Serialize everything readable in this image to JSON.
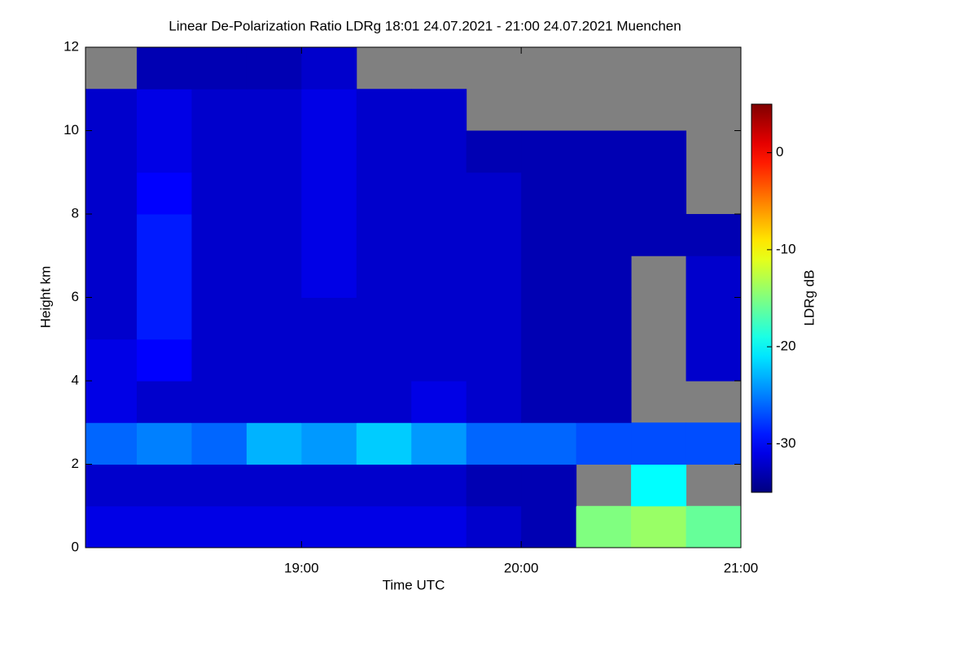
{
  "chart_data": {
    "type": "heatmap",
    "title": "Linear De-Polarization Ratio LDRg   18:01 24.07.2021 - 21:00 24.07.2021 Muenchen",
    "xlabel": "Time UTC",
    "ylabel": "Height km",
    "colorbar_label": "LDRg dB",
    "xbins": [
      18.0,
      18.25,
      18.5,
      18.75,
      19.0,
      19.25,
      19.5,
      19.75,
      20.0,
      20.25,
      20.5,
      20.75,
      21.0
    ],
    "ybins": [
      0,
      1,
      2,
      3,
      4,
      5,
      6,
      7,
      8,
      9,
      10,
      11,
      12
    ],
    "z": [
      [
        -31,
        -31,
        -31,
        -31,
        -31,
        -31,
        -31,
        -32,
        -33,
        -15,
        -14,
        -16
      ],
      [
        -32,
        -32,
        -32,
        -32,
        -32,
        -32,
        -32,
        -33,
        -33,
        null,
        -20,
        null
      ],
      [
        -26,
        -25,
        -26,
        -23,
        -24,
        -22,
        -24,
        -26,
        -26,
        -27,
        -27,
        -27
      ],
      [
        -31,
        -32,
        -32,
        -32,
        -32,
        -32,
        -31,
        -32,
        -33,
        -33,
        null,
        null
      ],
      [
        -31,
        -30,
        -32,
        -32,
        -32,
        -32,
        -32,
        -32,
        -33,
        -33,
        null,
        -32
      ],
      [
        -32,
        -29,
        -32,
        -32,
        -32,
        -32,
        -32,
        -32,
        -33,
        -33,
        null,
        -32
      ],
      [
        -32,
        -29,
        -32,
        -32,
        -31,
        -32,
        -32,
        -32,
        -33,
        -33,
        null,
        -32
      ],
      [
        -32,
        -29,
        -32,
        -32,
        -31,
        -32,
        -32,
        -32,
        -33,
        -33,
        -33,
        -33
      ],
      [
        -32,
        -30,
        -32,
        -32,
        -31,
        -32,
        -32,
        -32,
        -33,
        -33,
        -33,
        null
      ],
      [
        -32,
        -31,
        -32,
        -32,
        -31,
        -32,
        -32,
        -33,
        -33,
        -33,
        -33,
        null
      ],
      [
        -32,
        -31,
        -32,
        -32,
        -31,
        -32,
        -32,
        null,
        null,
        null,
        null,
        null
      ],
      [
        null,
        -33,
        -33,
        -33,
        -32,
        null,
        null,
        null,
        null,
        null,
        null,
        null
      ]
    ],
    "xlim": [
      18.0167,
      21.0
    ],
    "xticks": [
      {
        "value": 19,
        "label": "19:00"
      },
      {
        "value": 20,
        "label": "20:00"
      },
      {
        "value": 21,
        "label": "21:00"
      }
    ],
    "ylim": [
      0,
      12
    ],
    "yticks": [
      0,
      2,
      4,
      6,
      8,
      10,
      12
    ],
    "zlim": [
      -35,
      5
    ],
    "zticks": [
      0,
      -10,
      -20,
      -30
    ],
    "colormap": "jet",
    "missing_color": "#808080"
  }
}
